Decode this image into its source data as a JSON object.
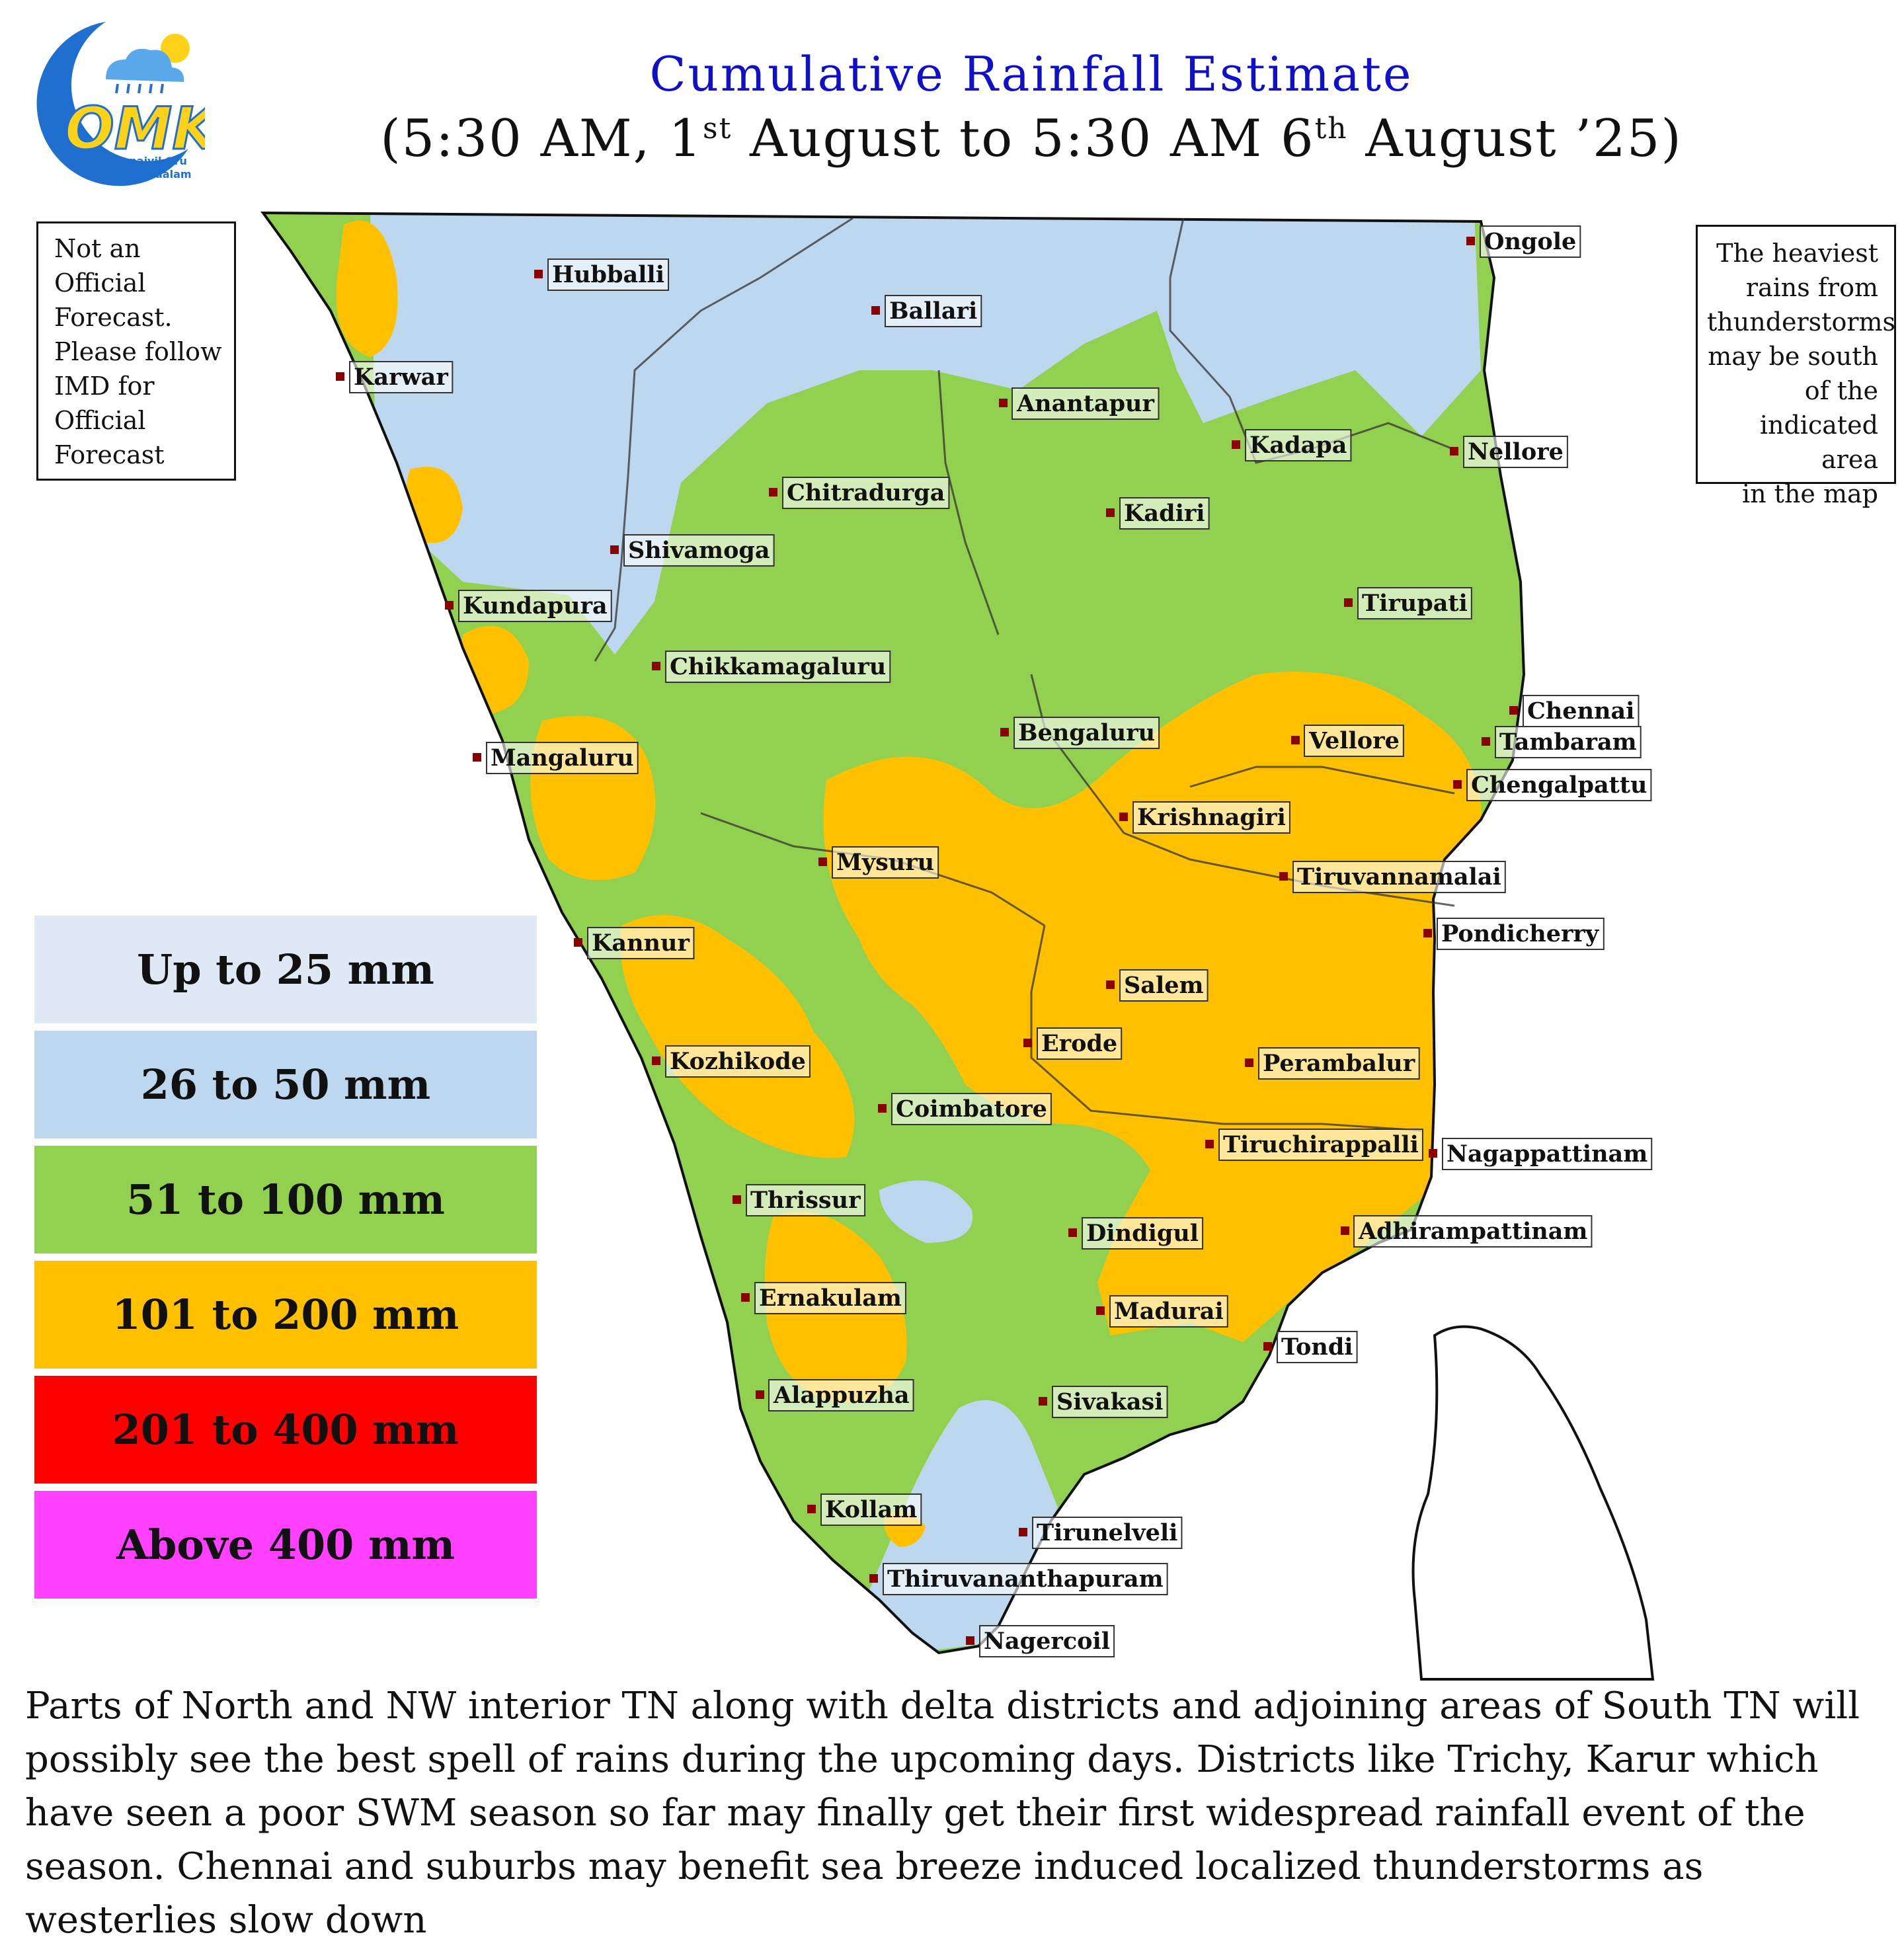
{
  "logo": {
    "text": "OMK",
    "line1": "Chennaiyil Oru",
    "line2": "Mazhaikkaalam"
  },
  "title": {
    "line1": "Cumulative Rainfall Estimate",
    "line2_a": "(5:30 AM, 1",
    "line2_sup1": "st",
    "line2_b": " August to 5:30 AM 6",
    "line2_sup2": "th",
    "line2_c": " August ’25)"
  },
  "note_left": [
    "Not an",
    "Official",
    "Forecast.",
    "Please follow",
    "IMD for",
    "Official",
    "Forecast"
  ],
  "note_right": [
    "The heaviest",
    "rains from",
    "thunderstorms",
    "may be south",
    "of the",
    "indicated area",
    "in the map"
  ],
  "legend": [
    {
      "label": "Up to 25 mm",
      "color": "#dfe9f5"
    },
    {
      "label": "26 to 50 mm",
      "color": "#bdd7ee"
    },
    {
      "label": "51 to 100 mm",
      "color": "#92d050"
    },
    {
      "label": "101 to 200 mm",
      "color": "#ffc000"
    },
    {
      "label": "201 to 400 mm",
      "color": "#ff0000"
    },
    {
      "label": "Above 400 mm",
      "color": "#ff40ff"
    }
  ],
  "cities": [
    "Hubballi",
    "Ongole",
    "Ballari",
    "Karwar",
    "Anantapur",
    "Kadapa",
    "Nellore",
    "Chitradurga",
    "Kadiri",
    "Shivamoga",
    "Kundapura",
    "Tirupati",
    "Chikkamagaluru",
    "Chennai",
    "Tambaram",
    "Bengaluru",
    "Vellore",
    "Mangaluru",
    "Chengalpattu",
    "Krishnagiri",
    "Mysuru",
    "Tiruvannamalai",
    "Kannur",
    "Pondicherry",
    "Salem",
    "Erode",
    "Kozhikode",
    "Perambalur",
    "Coimbatore",
    "Tiruchirappalli",
    "Nagappattinam",
    "Thrissur",
    "Dindigul",
    "Adhirampattinam",
    "Ernakulam",
    "Madurai",
    "Tondi",
    "Alappuzha",
    "Sivakasi",
    "Kollam",
    "Tirunelveli",
    "Thiruvananthapuram",
    "Nagercoil"
  ],
  "bottom_text": "Parts of North and NW interior TN along with delta districts and adjoining areas of South TN will possibly see the best spell of rains during the upcoming days. Districts like Trichy, Karur which have seen a poor SWM season so far may finally get their first widespread rainfall event of the season. Chennai and suburbs may benefit sea breeze induced localized thunderstorms as westerlies slow down"
}
